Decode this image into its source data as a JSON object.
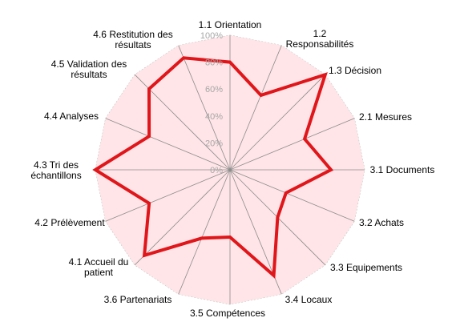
{
  "chart_data": {
    "type": "radar",
    "categories": [
      "1.1 Orientation",
      "1.2 Responsabilités",
      "1.3 Décision",
      "2.1 Mesures",
      "3.1 Documents",
      "3.2 Achats",
      "3.3 Equipements",
      "3.4 Locaux",
      "3.5 Compétences",
      "3.6 Partenariats",
      "4.1 Accueil du patient",
      "4.2 Prélèvement",
      "4.3 Tri des échantillons",
      "4.4 Analyses",
      "4.5 Validation des résultats",
      "4.6 Restitution des résultats"
    ],
    "series": [
      {
        "values": [
          80,
          60,
          100,
          60,
          75,
          45,
          50,
          85,
          50,
          55,
          90,
          65,
          100,
          65,
          85,
          90
        ],
        "color": "#e0161a"
      }
    ],
    "sectors": [
      {
        "from": 0,
        "to": 2,
        "color": "#fce4d6"
      },
      {
        "from": 3,
        "to": 3,
        "color": "#c5d6ee"
      },
      {
        "from": 4,
        "to": 9,
        "color": "#ccffcc"
      },
      {
        "from": 10,
        "to": 15,
        "color": "#ddd9c4"
      }
    ],
    "inner_fill": "#ffe5e8",
    "ticks": [
      "0%",
      "20%",
      "40%",
      "60%",
      "80%",
      "100%"
    ],
    "rlim": [
      0,
      100
    ],
    "grid": true
  }
}
